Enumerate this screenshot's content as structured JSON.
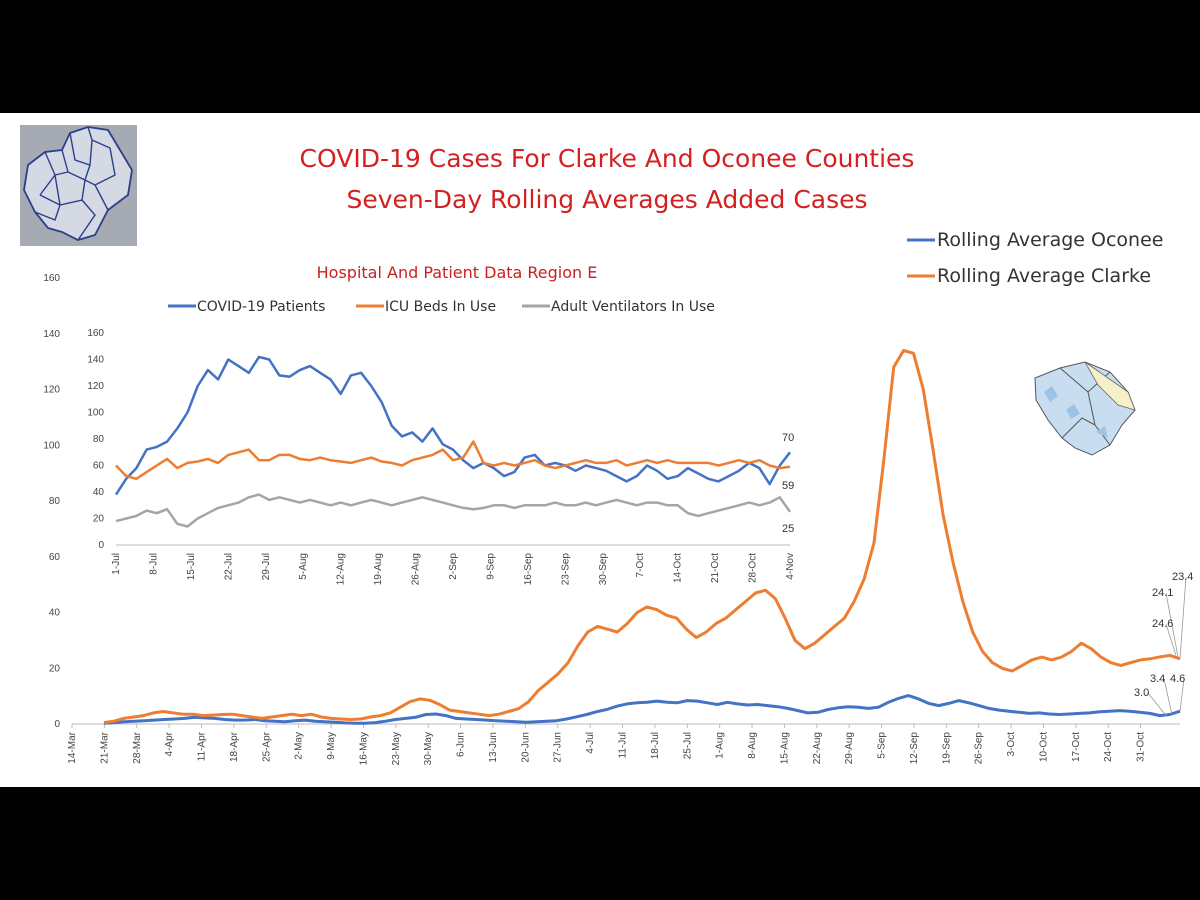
{
  "chart_data": [
    {
      "type": "line",
      "title": "COVID-19 Cases For Clarke And Oconee Counties",
      "subtitle": "Seven-Day Rolling Averages Added Cases",
      "ylim": [
        0,
        160
      ],
      "yticks": [
        "0",
        "20",
        "40",
        "60",
        "80",
        "100",
        "120",
        "140",
        "160"
      ],
      "x_tick_labels": [
        "14-Mar",
        "21-Mar",
        "28-Mar",
        "4-Apr",
        "11-Apr",
        "18-Apr",
        "25-Apr",
        "2-May",
        "9-May",
        "16-May",
        "23-May",
        "30-May",
        "6-Jun",
        "13-Jun",
        "20-Jun",
        "27-Jun",
        "4-Jul",
        "11-Jul",
        "18-Jul",
        "25-Jul",
        "1-Aug",
        "8-Aug",
        "15-Aug",
        "22-Aug",
        "29-Aug",
        "5-Sep",
        "12-Sep",
        "19-Sep",
        "26-Sep",
        "3-Oct",
        "10-Oct",
        "17-Oct",
        "24-Oct",
        "31-Oct"
      ],
      "legend_position": "top-right",
      "series": [
        {
          "name": "Rolling Average Oconee",
          "color": "#4472c4",
          "values": [
            0.3,
            0.5,
            0.8,
            1.0,
            1.2,
            1.4,
            1.6,
            1.8,
            2.0,
            2.4,
            2.2,
            2.0,
            1.6,
            1.4,
            1.4,
            1.6,
            1.2,
            1.0,
            0.8,
            1.2,
            1.4,
            1.0,
            0.8,
            0.6,
            0.4,
            0.3,
            0.3,
            0.5,
            1.0,
            1.6,
            2.0,
            2.4,
            3.4,
            3.6,
            3.0,
            2.0,
            1.8,
            1.6,
            1.4,
            1.2,
            1.0,
            0.8,
            0.6,
            0.8,
            1.0,
            1.2,
            1.8,
            2.6,
            3.4,
            4.4,
            5.2,
            6.4,
            7.2,
            7.6,
            7.8,
            8.2,
            7.8,
            7.6,
            8.4,
            8.2,
            7.6,
            7.0,
            7.8,
            7.2,
            6.8,
            7.0,
            6.6,
            6.2,
            5.6,
            4.8,
            4.0,
            4.2,
            5.2,
            5.8,
            6.2,
            6.0,
            5.6,
            6.0,
            7.8,
            9.2,
            10.2,
            9.0,
            7.4,
            6.6,
            7.4,
            8.4,
            7.6,
            6.6,
            5.6,
            5.0,
            4.6,
            4.2,
            3.8,
            4.0,
            3.6,
            3.4,
            3.6,
            3.8,
            4.0,
            4.4,
            4.6,
            4.8,
            4.6,
            4.2,
            3.8,
            3.0,
            3.4,
            4.6
          ]
        },
        {
          "name": "Rolling Average Clarke",
          "color": "#ed7d31",
          "values": [
            0.5,
            1.0,
            2.0,
            2.5,
            3.0,
            4.0,
            4.5,
            4.0,
            3.5,
            3.5,
            3.0,
            3.2,
            3.4,
            3.5,
            3.0,
            2.5,
            2.0,
            2.5,
            3.0,
            3.5,
            3.0,
            3.5,
            2.5,
            2.0,
            1.8,
            1.6,
            1.8,
            2.5,
            3.0,
            4.0,
            6.0,
            8.0,
            9.0,
            8.5,
            7.0,
            5.0,
            4.5,
            4.0,
            3.5,
            3.0,
            3.5,
            4.5,
            5.5,
            8.0,
            12.0,
            15.0,
            18.0,
            22.0,
            28.0,
            33.0,
            35.0,
            34.0,
            33.0,
            36.0,
            40.0,
            42.0,
            41.0,
            39.0,
            38.0,
            34.0,
            31.0,
            33.0,
            36.0,
            38.0,
            41.0,
            44.0,
            47.0,
            48.0,
            45.0,
            38.0,
            30.0,
            27.0,
            29.0,
            32.0,
            35.0,
            38.0,
            44.0,
            52.0,
            65.0,
            95.0,
            128.0,
            134.0,
            133.0,
            120.0,
            98.0,
            75.0,
            58.0,
            44.0,
            33.0,
            26.0,
            22.0,
            20.0,
            19.0,
            21.0,
            23.0,
            24.0,
            23.0,
            24.0,
            26.0,
            29.0,
            27.0,
            24.0,
            22.0,
            21.0,
            22.0,
            23.0,
            23.4,
            24.1,
            24.6,
            23.4
          ]
        }
      ],
      "end_labels": [
        "23.4",
        "24.1",
        "24.6",
        "3.4",
        "4.6",
        "3.0"
      ]
    },
    {
      "type": "line",
      "title": "Hospital And Patient Data Region E",
      "ylim": [
        0,
        160
      ],
      "yticks": [
        "0",
        "20",
        "40",
        "60",
        "80",
        "100",
        "120",
        "140",
        "160"
      ],
      "x_tick_labels": [
        "1-Jul",
        "8-Jul",
        "15-Jul",
        "22-Jul",
        "29-Jul",
        "5-Aug",
        "12-Aug",
        "19-Aug",
        "26-Aug",
        "2-Sep",
        "9-Sep",
        "16-Sep",
        "23-Sep",
        "30-Sep",
        "7-Oct",
        "14-Oct",
        "21-Oct",
        "28-Oct",
        "4-Nov"
      ],
      "legend_position": "top",
      "series": [
        {
          "name": "COVID-19 Patients",
          "color": "#4472c4",
          "values": [
            38,
            50,
            58,
            72,
            74,
            78,
            88,
            100,
            120,
            132,
            125,
            140,
            135,
            130,
            142,
            140,
            128,
            127,
            132,
            135,
            130,
            125,
            114,
            128,
            130,
            120,
            108,
            90,
            82,
            85,
            78,
            88,
            76,
            72,
            64,
            58,
            62,
            58,
            52,
            55,
            66,
            68,
            60,
            62,
            60,
            56,
            60,
            58,
            56,
            52,
            48,
            52,
            60,
            56,
            50,
            52,
            58,
            54,
            50,
            48,
            52,
            56,
            62,
            58,
            46,
            60,
            70
          ]
        },
        {
          "name": "ICU Beds In Use",
          "color": "#ed7d31",
          "values": [
            60,
            52,
            50,
            55,
            60,
            65,
            58,
            62,
            63,
            65,
            62,
            68,
            70,
            72,
            64,
            64,
            68,
            68,
            65,
            64,
            66,
            64,
            63,
            62,
            64,
            66,
            63,
            62,
            60,
            64,
            66,
            68,
            72,
            64,
            66,
            78,
            62,
            60,
            62,
            60,
            62,
            64,
            60,
            58,
            60,
            62,
            64,
            62,
            62,
            64,
            60,
            62,
            64,
            62,
            64,
            62,
            62,
            62,
            62,
            60,
            62,
            64,
            62,
            64,
            60,
            58,
            59
          ]
        },
        {
          "name": "Adult Ventilators In Use",
          "color": "#a5a5a5",
          "values": [
            18,
            20,
            22,
            26,
            24,
            27,
            16,
            14,
            20,
            24,
            28,
            30,
            32,
            36,
            38,
            34,
            36,
            34,
            32,
            34,
            32,
            30,
            32,
            30,
            32,
            34,
            32,
            30,
            32,
            34,
            36,
            34,
            32,
            30,
            28,
            27,
            28,
            30,
            30,
            28,
            30,
            30,
            30,
            32,
            30,
            30,
            32,
            30,
            32,
            34,
            32,
            30,
            32,
            32,
            30,
            30,
            24,
            22,
            24,
            26,
            28,
            30,
            32,
            30,
            32,
            36,
            25
          ]
        }
      ],
      "end_labels": [
        "70",
        "59",
        "25"
      ]
    }
  ]
}
